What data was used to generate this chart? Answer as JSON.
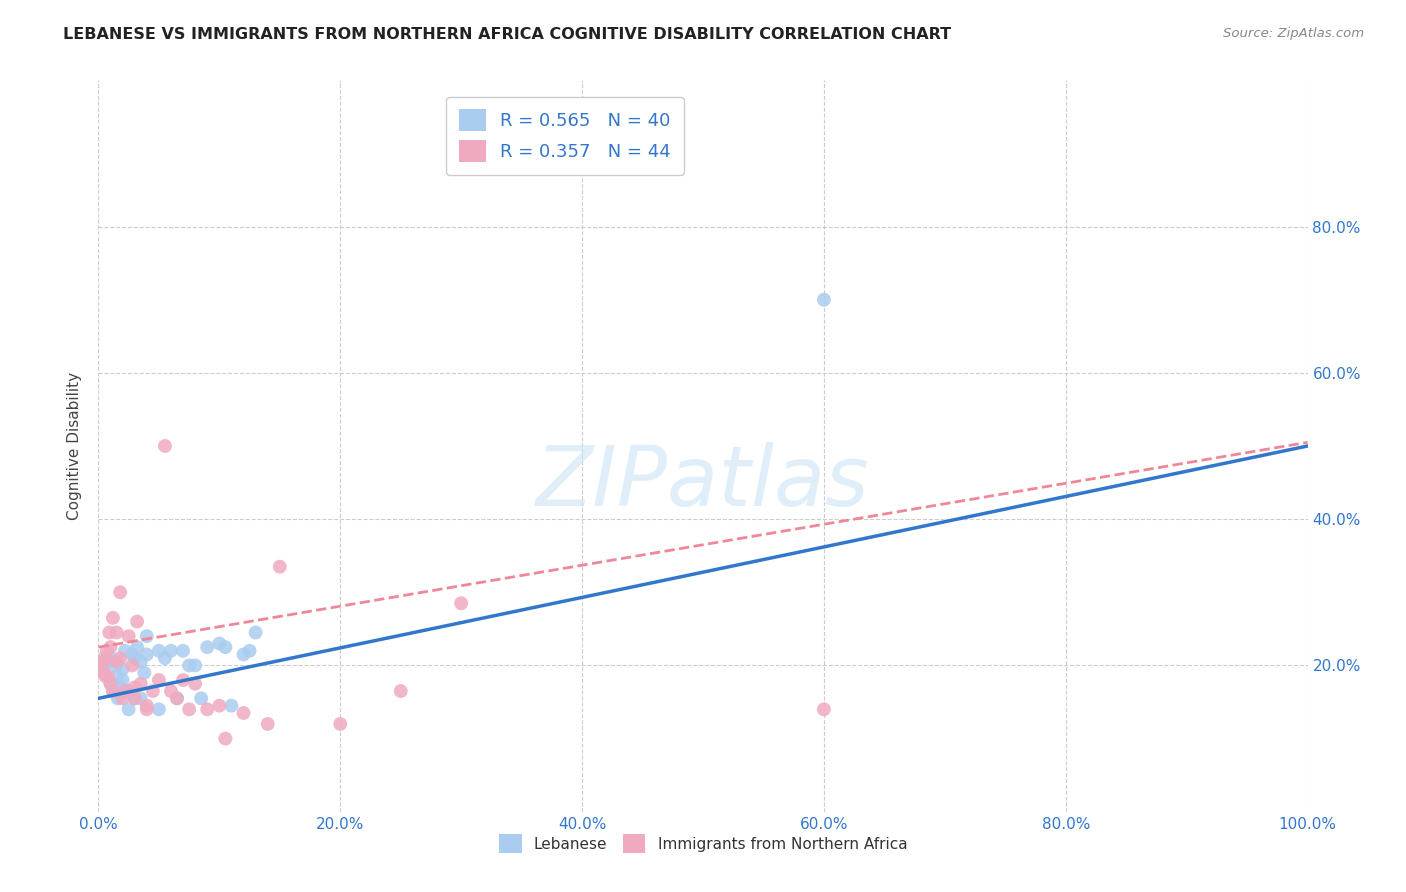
{
  "title": "LEBANESE VS IMMIGRANTS FROM NORTHERN AFRICA COGNITIVE DISABILITY CORRELATION CHART",
  "source": "Source: ZipAtlas.com",
  "ylabel": "Cognitive Disability",
  "xlabel": "",
  "xlim": [
    0,
    1.0
  ],
  "ylim": [
    0,
    1.0
  ],
  "xticks": [
    0.0,
    0.2,
    0.4,
    0.6,
    0.8,
    1.0
  ],
  "yticks": [
    0.2,
    0.4,
    0.6,
    0.8
  ],
  "xticklabels": [
    "0.0%",
    "20.0%",
    "40.0%",
    "60.0%",
    "80.0%",
    "100.0%"
  ],
  "yticklabels_right": [
    "20.0%",
    "40.0%",
    "60.0%",
    "80.0%"
  ],
  "legend_label1": "Lebanese",
  "legend_label2": "Immigrants from Northern Africa",
  "r1": 0.565,
  "n1": 40,
  "r2": 0.357,
  "n2": 44,
  "color1": "#aaccf0",
  "color2": "#f0aac0",
  "line_color1": "#3377cc",
  "line_color2": "#ee8899",
  "watermark": "ZIPatlas",
  "background": "#ffffff",
  "grid_color": "#cccccc",
  "line1_intercept": 0.155,
  "line1_slope": 0.345,
  "line2_intercept": 0.225,
  "line2_slope": 0.28,
  "scatter1_x": [
    0.005,
    0.008,
    0.01,
    0.01,
    0.012,
    0.015,
    0.015,
    0.016,
    0.018,
    0.02,
    0.02,
    0.022,
    0.025,
    0.025,
    0.028,
    0.03,
    0.03,
    0.032,
    0.035,
    0.035,
    0.038,
    0.04,
    0.04,
    0.05,
    0.05,
    0.055,
    0.06,
    0.065,
    0.07,
    0.075,
    0.08,
    0.085,
    0.09,
    0.1,
    0.105,
    0.11,
    0.12,
    0.125,
    0.13,
    0.6
  ],
  "scatter1_y": [
    0.195,
    0.205,
    0.21,
    0.175,
    0.165,
    0.185,
    0.2,
    0.155,
    0.17,
    0.18,
    0.195,
    0.22,
    0.165,
    0.14,
    0.215,
    0.21,
    0.155,
    0.225,
    0.205,
    0.155,
    0.19,
    0.215,
    0.24,
    0.22,
    0.14,
    0.21,
    0.22,
    0.155,
    0.22,
    0.2,
    0.2,
    0.155,
    0.225,
    0.23,
    0.225,
    0.145,
    0.215,
    0.22,
    0.245,
    0.7
  ],
  "scatter2_x": [
    0.002,
    0.004,
    0.005,
    0.007,
    0.008,
    0.01,
    0.01,
    0.012,
    0.015,
    0.015,
    0.018,
    0.02,
    0.022,
    0.025,
    0.028,
    0.03,
    0.03,
    0.032,
    0.035,
    0.04,
    0.04,
    0.045,
    0.05,
    0.055,
    0.06,
    0.065,
    0.07,
    0.075,
    0.08,
    0.09,
    0.1,
    0.105,
    0.12,
    0.14,
    0.15,
    0.2,
    0.25,
    0.3,
    0.004,
    0.006,
    0.009,
    0.012,
    0.018,
    0.6
  ],
  "scatter2_y": [
    0.195,
    0.205,
    0.21,
    0.22,
    0.185,
    0.175,
    0.225,
    0.165,
    0.205,
    0.245,
    0.21,
    0.155,
    0.165,
    0.24,
    0.2,
    0.17,
    0.155,
    0.26,
    0.175,
    0.14,
    0.145,
    0.165,
    0.18,
    0.5,
    0.165,
    0.155,
    0.18,
    0.14,
    0.175,
    0.14,
    0.145,
    0.1,
    0.135,
    0.12,
    0.335,
    0.12,
    0.165,
    0.285,
    0.19,
    0.185,
    0.245,
    0.265,
    0.3,
    0.14
  ]
}
